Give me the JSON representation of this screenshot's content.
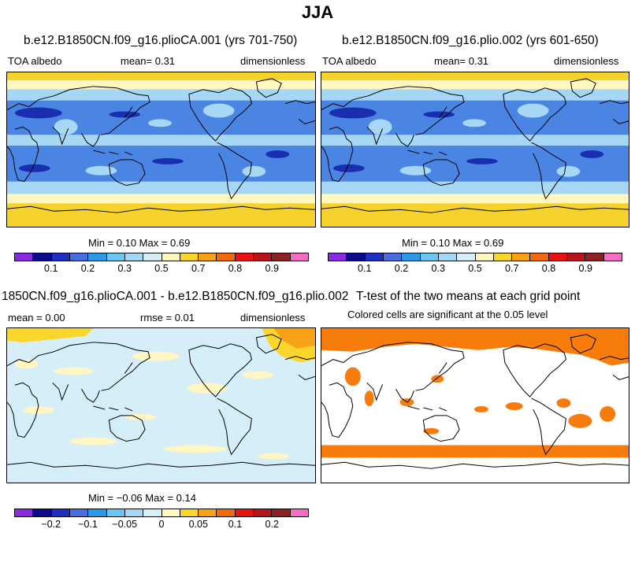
{
  "suptitle": "JJA",
  "panels": {
    "p1": {
      "title": "b.e12.B1850CN.f09_g16.plioCA.001 (yrs 701-750)",
      "left_label": "TOA albedo",
      "center_label": "mean=    0.31",
      "right_label": "dimensionless",
      "minmax": "Min =    0.10 Max =    0.69"
    },
    "p2": {
      "title": "b.e12.B1850CN.f09_g16.plio.002 (yrs 601-650)",
      "left_label": "TOA albedo",
      "center_label": "mean=    0.31",
      "right_label": "dimensionless",
      "minmax": "Min =    0.10 Max =    0.69"
    },
    "p3": {
      "title": "1850CN.f09_g16.plioCA.001 - b.e12.B1850CN.f09_g16.plio.002",
      "left_label": "mean =    0.00",
      "center_label": "rmse =    0.01",
      "right_label": "dimensionless",
      "minmax": "Min =  −0.06 Max =    0.14"
    },
    "p4": {
      "title": "T-test of the two means at each grid point",
      "subtitle": "Colored cells are significant at the 0.05 level"
    }
  },
  "colorbars": {
    "abs": {
      "colors": [
        "#8a2be2",
        "#0b0b8c",
        "#1f2fc2",
        "#4a6ee0",
        "#2a9ae6",
        "#67c6f2",
        "#a6d8f6",
        "#d6f0fa",
        "#fff7bf",
        "#fad62a",
        "#f9a218",
        "#f06a0c",
        "#e81410",
        "#b8141c",
        "#8e2222",
        "#f56ec4"
      ],
      "ticks": [
        "0.1",
        "0.2",
        "0.3",
        "0.5",
        "0.7",
        "0.8",
        "0.9"
      ]
    },
    "diff": {
      "colors": [
        "#8a2be2",
        "#0b0b8c",
        "#1f2fc2",
        "#4a6ee0",
        "#2a9ae6",
        "#67c6f2",
        "#a6d8f6",
        "#d6f0fa",
        "#fff7bf",
        "#fad62a",
        "#f9a218",
        "#f06a0c",
        "#e81410",
        "#b8141c",
        "#8e2222",
        "#f56ec4"
      ],
      "ticks": [
        "−0.2",
        "−0.1",
        "−0.05",
        "0",
        "0.05",
        "0.1",
        "0.2"
      ]
    }
  },
  "map_colors": {
    "polar": "#f6d32c",
    "subpolar": "#fff7bf",
    "midlat": "#a6d8f6",
    "ocean": "#4a85e4",
    "tropic": "#2a6ad8",
    "dark": "#1a2fb0",
    "pale": "#d6eef8",
    "paleyellow": "#fff6c4",
    "sig": "#f77c0c"
  }
}
